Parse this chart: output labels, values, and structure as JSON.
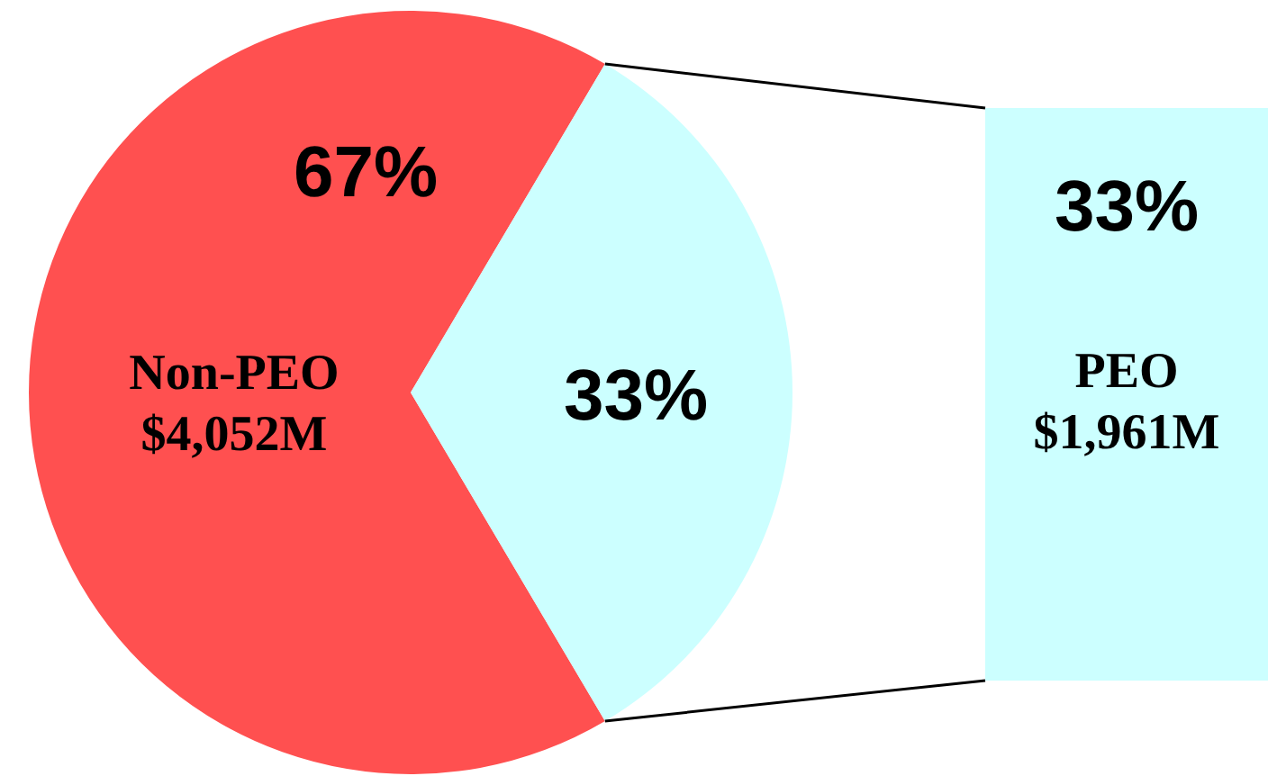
{
  "chart_data": {
    "type": "pie",
    "categories": [
      "Non-PEO\n$4,052M",
      "PEO\n$1,961M"
    ],
    "values": [
      67,
      33
    ],
    "value_labels": [
      "67%",
      "33%"
    ],
    "colors": [
      "#ff5050",
      "#ccffff"
    ]
  }
}
